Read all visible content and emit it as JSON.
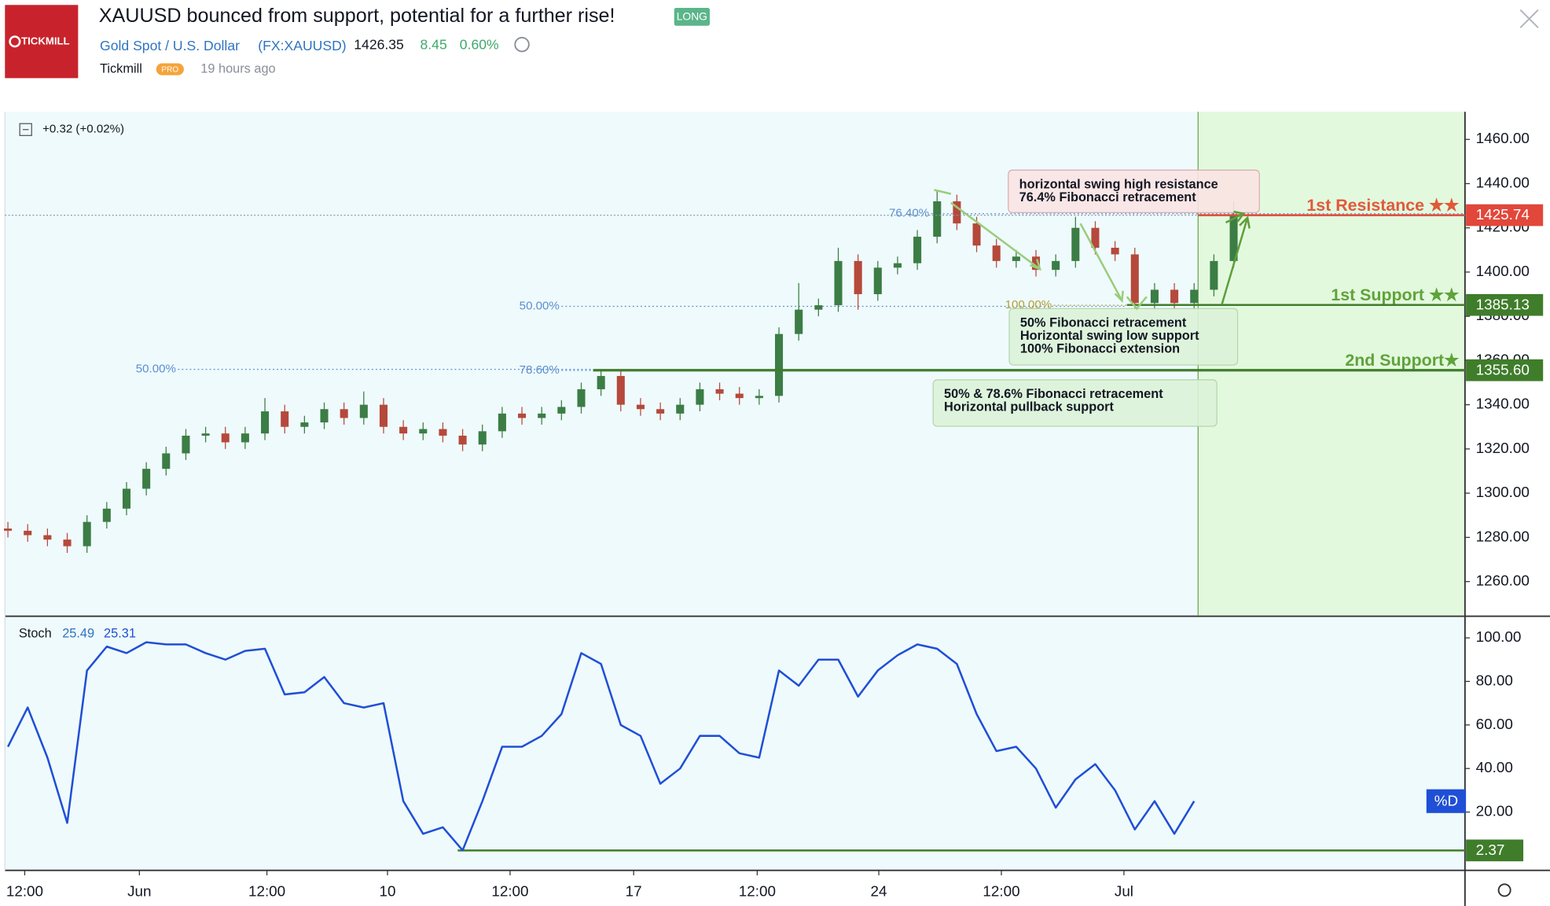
{
  "header": {
    "logo": "TICKMILL",
    "title": "XAUUSD bounced from support, potential for a further rise!",
    "tag": "LONG",
    "symbol_name": "Gold Spot / U.S. Dollar",
    "symbol": "(FX:XAUUSD)",
    "price": "1426.35",
    "change": "8.45",
    "change_pct": "0.60%",
    "author": "Tickmill",
    "badge": "PRO",
    "time": "19 hours ago"
  },
  "chart_data": [
    {
      "type": "candlestick",
      "legend_change": "+0.32 (+0.02%)",
      "x": [
        0,
        1,
        2,
        3,
        4,
        5,
        6,
        7,
        8,
        9,
        10,
        11,
        12,
        13,
        14,
        15,
        16,
        17,
        18,
        19,
        20,
        21,
        22,
        23,
        24,
        25,
        26,
        27,
        28,
        29,
        30,
        31,
        32,
        33,
        34,
        35,
        36,
        37,
        38,
        39,
        40,
        41,
        42,
        43,
        44,
        45,
        46,
        47,
        48,
        49,
        50,
        51,
        52,
        53,
        54,
        55,
        56,
        57,
        58,
        59,
        60,
        61,
        62
      ],
      "open": [
        1284,
        1283,
        1281,
        1279,
        1276,
        1287,
        1293,
        1302,
        1311,
        1318,
        1326,
        1327,
        1323,
        1327,
        1337,
        1330,
        1332,
        1338,
        1334,
        1340,
        1330,
        1327,
        1329,
        1326,
        1322,
        1328,
        1336,
        1334,
        1336,
        1339,
        1347,
        1353,
        1340,
        1338,
        1336,
        1340,
        1347,
        1345,
        1343,
        1344,
        1372,
        1383,
        1385,
        1405,
        1390,
        1402,
        1404,
        1416,
        1432,
        1422,
        1412,
        1405,
        1407,
        1401,
        1405,
        1420,
        1411,
        1408,
        1386,
        1392,
        1386,
        1392,
        1405
      ],
      "high": [
        1287,
        1286,
        1284,
        1282,
        1290,
        1296,
        1305,
        1314,
        1321,
        1329,
        1330,
        1330,
        1330,
        1343,
        1340,
        1335,
        1341,
        1341,
        1346,
        1343,
        1333,
        1332,
        1332,
        1329,
        1331,
        1339,
        1339,
        1339,
        1342,
        1350,
        1356,
        1356,
        1343,
        1341,
        1343,
        1350,
        1350,
        1348,
        1347,
        1375,
        1395,
        1388,
        1411,
        1408,
        1405,
        1407,
        1419,
        1437,
        1435,
        1425,
        1415,
        1410,
        1410,
        1408,
        1425,
        1423,
        1414,
        1411,
        1395,
        1395,
        1395,
        1408,
        1432
      ],
      "low": [
        1280,
        1278,
        1276,
        1273,
        1273,
        1284,
        1290,
        1299,
        1308,
        1315,
        1323,
        1320,
        1320,
        1324,
        1327,
        1327,
        1329,
        1331,
        1331,
        1327,
        1324,
        1324,
        1323,
        1319,
        1319,
        1325,
        1331,
        1331,
        1333,
        1336,
        1344,
        1337,
        1335,
        1333,
        1333,
        1337,
        1342,
        1340,
        1340,
        1341,
        1369,
        1380,
        1382,
        1383,
        1387,
        1399,
        1401,
        1413,
        1419,
        1409,
        1402,
        1402,
        1398,
        1398,
        1402,
        1408,
        1405,
        1383,
        1383,
        1383,
        1383,
        1389,
        1402
      ],
      "close": [
        1283,
        1281,
        1279,
        1276,
        1287,
        1293,
        1302,
        1311,
        1318,
        1326,
        1327,
        1323,
        1327,
        1337,
        1330,
        1332,
        1338,
        1334,
        1340,
        1330,
        1327,
        1329,
        1326,
        1322,
        1328,
        1336,
        1334,
        1336,
        1339,
        1347,
        1353,
        1340,
        1338,
        1336,
        1340,
        1347,
        1345,
        1343,
        1344,
        1372,
        1383,
        1385,
        1405,
        1390,
        1402,
        1404,
        1416,
        1432,
        1422,
        1412,
        1405,
        1407,
        1401,
        1405,
        1420,
        1411,
        1408,
        1386,
        1392,
        1386,
        1392,
        1405,
        1426
      ],
      "up_color": "#3b7d45",
      "down_color": "#b5493b",
      "xlim": [
        -0.15,
        73.7
      ],
      "xticks": [
        {
          "value": 0.85,
          "label": "12:00"
        },
        {
          "value": 6.65,
          "label": "Jun"
        },
        {
          "value": 13.1,
          "label": "12:00"
        },
        {
          "value": 19.2,
          "label": "10"
        },
        {
          "value": 25.4,
          "label": "12:00"
        },
        {
          "value": 31.65,
          "label": "17"
        },
        {
          "value": 37.9,
          "label": "12:00"
        },
        {
          "value": 44.05,
          "label": "24"
        },
        {
          "value": 50.25,
          "label": "12:00"
        },
        {
          "value": 56.45,
          "label": "Jul"
        }
      ],
      "ylim": [
        1244.8,
        1472.5
      ],
      "yticks": [
        {
          "value": 1460,
          "label": "1460.00"
        },
        {
          "value": 1440,
          "label": "1440.00"
        },
        {
          "value": 1420,
          "label": "1420.00"
        },
        {
          "value": 1400,
          "label": "1400.00"
        },
        {
          "value": 1380,
          "label": "1380.00"
        },
        {
          "value": 1360,
          "label": "1360.00"
        },
        {
          "value": 1340,
          "label": "1340.00"
        },
        {
          "value": 1320,
          "label": "1320.00"
        },
        {
          "value": 1300,
          "label": "1300.00"
        },
        {
          "value": 1280,
          "label": "1280.00"
        },
        {
          "value": 1260,
          "label": "1260.00"
        }
      ],
      "fib_levels": [
        {
          "value": 1426.4,
          "label": "76.40%"
        },
        {
          "value": 1384.5,
          "label": "50.00%"
        },
        {
          "value": 1385,
          "label": "100.00%"
        },
        {
          "value": 1356,
          "label": "50.00%"
        },
        {
          "value": 1355.5,
          "label": "78.60%"
        }
      ],
      "levels": [
        {
          "name": "1st Resistance ★★",
          "value": 1425.74,
          "label": "1425.74",
          "color": "#e2473b"
        },
        {
          "name": "1st Support ★★",
          "value": 1385.13,
          "label": "1385.13",
          "color": "#3f7d2b"
        },
        {
          "name": "2nd Support★",
          "value": 1355.6,
          "label": "1355.60",
          "color": "#3f7d2b"
        }
      ],
      "annotations": [
        {
          "lines": [
            "horizontal swing high resistance",
            "76.4% Fibonacci retracement"
          ]
        },
        {
          "lines": [
            "50% Fibonacci retracement",
            "Horizontal swing low support",
            "100% Fibonacci extension"
          ]
        },
        {
          "lines": [
            "50% & 78.6% Fibonacci retracement",
            "Horizontal pullback support"
          ]
        }
      ]
    },
    {
      "type": "line",
      "name": "Stoch",
      "legend_values": [
        "25.49",
        "25.31"
      ],
      "xlim": [
        -0.15,
        73.7
      ],
      "ylim": [
        -6.8,
        109.5
      ],
      "yticks": [
        {
          "value": 100,
          "label": "100.00"
        },
        {
          "value": 80,
          "label": "80.00"
        },
        {
          "value": 60,
          "label": "60.00"
        },
        {
          "value": 40,
          "label": "40.00"
        },
        {
          "value": 20,
          "label": "20.00"
        }
      ],
      "level": {
        "value": 2.37,
        "label": "2.37",
        "color": "#3f7d2b"
      },
      "series": [
        {
          "name": "%D",
          "color": "#1f4fd6",
          "x": [
            0,
            1,
            2,
            3,
            4,
            5,
            6,
            7,
            8,
            9,
            10,
            11,
            12,
            13,
            14,
            15,
            16,
            17,
            18,
            19,
            20,
            21,
            22,
            23,
            24,
            25,
            26,
            27,
            28,
            29,
            30,
            31,
            32,
            33,
            34,
            35,
            36,
            37,
            38,
            39,
            40,
            41,
            42,
            43,
            44,
            45,
            46,
            47,
            48,
            49,
            50,
            51,
            52,
            53,
            54,
            55,
            56,
            57,
            58,
            59,
            60
          ],
          "values": [
            50,
            68,
            45,
            15,
            85,
            96,
            93,
            98,
            97,
            97,
            93,
            90,
            94,
            95,
            74,
            75,
            82,
            70,
            68,
            70,
            25,
            10,
            13,
            2.4,
            25,
            50,
            50,
            55,
            65,
            93,
            88,
            60,
            55,
            33,
            40,
            55,
            55,
            47,
            45,
            85,
            78,
            90,
            90,
            73,
            85,
            92,
            97,
            95,
            88,
            65,
            48,
            50,
            40,
            22,
            35,
            42,
            30,
            12,
            25,
            10,
            25
          ]
        }
      ]
    }
  ]
}
